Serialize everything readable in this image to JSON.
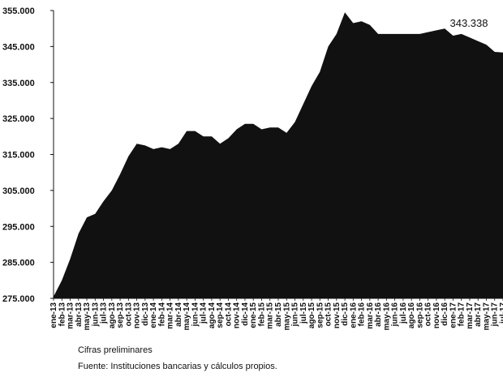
{
  "chart_data": {
    "type": "area",
    "title": "",
    "xlabel": "",
    "ylabel": "",
    "ylim": [
      275000,
      355000
    ],
    "yticks": [
      275000,
      285000,
      295000,
      305000,
      315000,
      325000,
      335000,
      345000,
      355000
    ],
    "ytick_labels": [
      "275.000",
      "285.000",
      "295.000",
      "305.000",
      "315.000",
      "325.000",
      "335.000",
      "345.000",
      "355.000"
    ],
    "x": [
      "ene-13",
      "feb-13",
      "mar-13",
      "abr-13",
      "may-13",
      "jun-13",
      "jul-13",
      "ago-13",
      "sep-13",
      "oct-13",
      "nov-13",
      "dic-13",
      "ene-14",
      "feb-14",
      "mar-14",
      "abr-14",
      "may-14",
      "jun-14",
      "jul-14",
      "ago-14",
      "sep-14",
      "oct-14",
      "nov-14",
      "dic-14",
      "ene-15",
      "feb-15",
      "mar-15",
      "abr-15",
      "may-15",
      "jun-15",
      "jul-15",
      "ago-15",
      "sep-15",
      "oct-15",
      "nov-15",
      "dic-15",
      "ene-16",
      "feb-16",
      "mar-16",
      "abr-16",
      "may-16",
      "jun-16",
      "jul-16",
      "ago-16",
      "sep-16",
      "oct-16",
      "nov-16",
      "dic-16",
      "ene-17",
      "feb-17",
      "mar-17",
      "abr-17",
      "may-17",
      "jun-17",
      "jul-17"
    ],
    "values": [
      275500,
      280000,
      286000,
      293000,
      297500,
      298500,
      302000,
      305000,
      309500,
      314500,
      318000,
      317500,
      316500,
      317000,
      316500,
      318000,
      321500,
      321500,
      320000,
      320000,
      318000,
      319500,
      322000,
      323500,
      323500,
      322000,
      322500,
      322500,
      321000,
      324000,
      329000,
      334000,
      338000,
      345000,
      348500,
      354500,
      351500,
      352000,
      351000,
      348500,
      348500,
      348500,
      348500,
      348500,
      348500,
      349000,
      349500,
      350000,
      348000,
      348500,
      347500,
      346500,
      345500,
      343500,
      343338
    ],
    "last_value_label": "343.338",
    "fill_color": "#111111",
    "grid": false,
    "legend": "none"
  },
  "notes": {
    "preliminary": "Cifras preliminares",
    "source": "Fuente: Instituciones bancarias y cálculos propios."
  }
}
